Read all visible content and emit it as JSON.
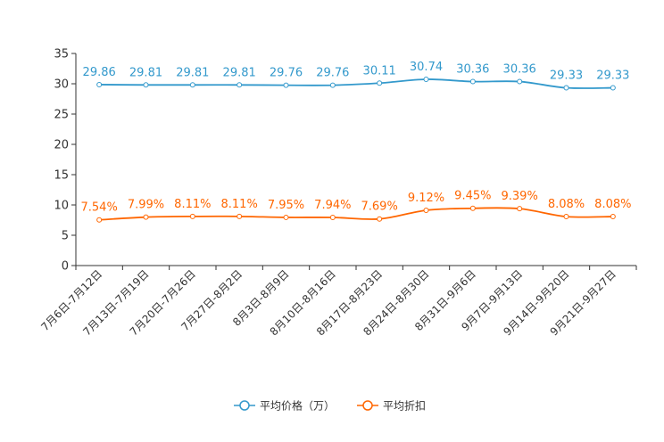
{
  "chart_data": {
    "type": "line",
    "title": "",
    "xlabel": "",
    "ylabel": "",
    "ylim": [
      0,
      35
    ],
    "yticks": [
      0,
      5,
      10,
      15,
      20,
      25,
      30,
      35
    ],
    "grid": false,
    "legend_position": "bottom",
    "categories": [
      "7月6日-7月12日",
      "7月13日-7月19日",
      "7月20日-7月26日",
      "7月27日-8月2日",
      "8月3日-8月9日",
      "8月10日-8月16日",
      "8月17日-8月23日",
      "8月24日-8月30日",
      "8月31日-9月6日",
      "9月7日-9月13日",
      "9月14日-9月20日",
      "9月21日-9月27日"
    ],
    "series": [
      {
        "name": "平均价格（万）",
        "color": "#3399cc",
        "values": [
          29.86,
          29.81,
          29.81,
          29.81,
          29.76,
          29.76,
          30.11,
          30.74,
          30.36,
          30.36,
          29.33,
          29.33
        ],
        "labels": [
          "29.86",
          "29.81",
          "29.81",
          "29.81",
          "29.76",
          "29.76",
          "30.11",
          "30.74",
          "30.36",
          "30.36",
          "29.33",
          "29.33"
        ]
      },
      {
        "name": "平均折扣",
        "color": "#ff6600",
        "values": [
          7.54,
          7.99,
          8.11,
          8.11,
          7.95,
          7.94,
          7.69,
          9.12,
          9.45,
          9.39,
          8.08,
          8.08
        ],
        "labels": [
          "7.54%",
          "7.99%",
          "8.11%",
          "8.11%",
          "7.95%",
          "7.94%",
          "7.69%",
          "9.12%",
          "9.45%",
          "9.39%",
          "8.08%",
          "8.08%"
        ]
      }
    ]
  }
}
